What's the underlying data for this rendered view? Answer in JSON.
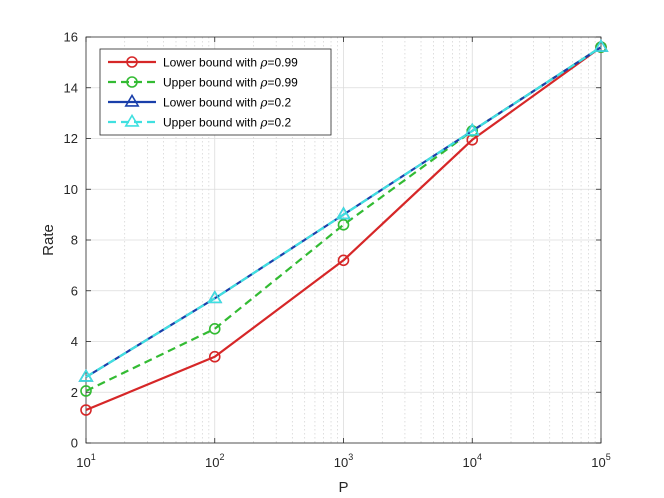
{
  "chart_data": {
    "type": "line",
    "xlabel": "P",
    "ylabel": "Rate",
    "xscale": "log",
    "xlim": [
      10,
      100000
    ],
    "ylim": [
      0,
      16
    ],
    "x_ticks": [
      {
        "base": "10",
        "exp": "1"
      },
      {
        "base": "10",
        "exp": "2"
      },
      {
        "base": "10",
        "exp": "3"
      },
      {
        "base": "10",
        "exp": "4"
      },
      {
        "base": "10",
        "exp": "5"
      }
    ],
    "y_ticks": [
      "0",
      "2",
      "4",
      "6",
      "8",
      "10",
      "12",
      "14",
      "16"
    ],
    "grid": true,
    "minor_grid": true,
    "legend_position": "top-left",
    "x": [
      10,
      100,
      1000,
      10000,
      100000
    ],
    "series": [
      {
        "label_prefix": "Lower bound with ",
        "symbol": "ρ",
        "label_suffix": "=0.99",
        "color": "#d62728",
        "dash": "solid",
        "marker": "circle",
        "values": [
          1.3,
          3.4,
          7.2,
          11.95,
          15.6
        ]
      },
      {
        "label_prefix": "Upper bound with ",
        "symbol": "ρ",
        "label_suffix": "=0.99",
        "color": "#33bb33",
        "dash": "dashed",
        "marker": "circle",
        "values": [
          2.05,
          4.5,
          8.6,
          12.3,
          15.6
        ]
      },
      {
        "label_prefix": "Lower bound with ",
        "symbol": "ρ",
        "label_suffix": "=0.2",
        "color": "#1a3faa",
        "dash": "solid",
        "marker": "triangle",
        "values": [
          2.6,
          5.7,
          9.0,
          12.3,
          15.6
        ]
      },
      {
        "label_prefix": "Upper bound with ",
        "symbol": "ρ",
        "label_suffix": "=0.2",
        "color": "#40e0e0",
        "dash": "dashed",
        "marker": "triangle",
        "values": [
          2.6,
          5.7,
          9.0,
          12.3,
          15.6
        ]
      }
    ]
  }
}
